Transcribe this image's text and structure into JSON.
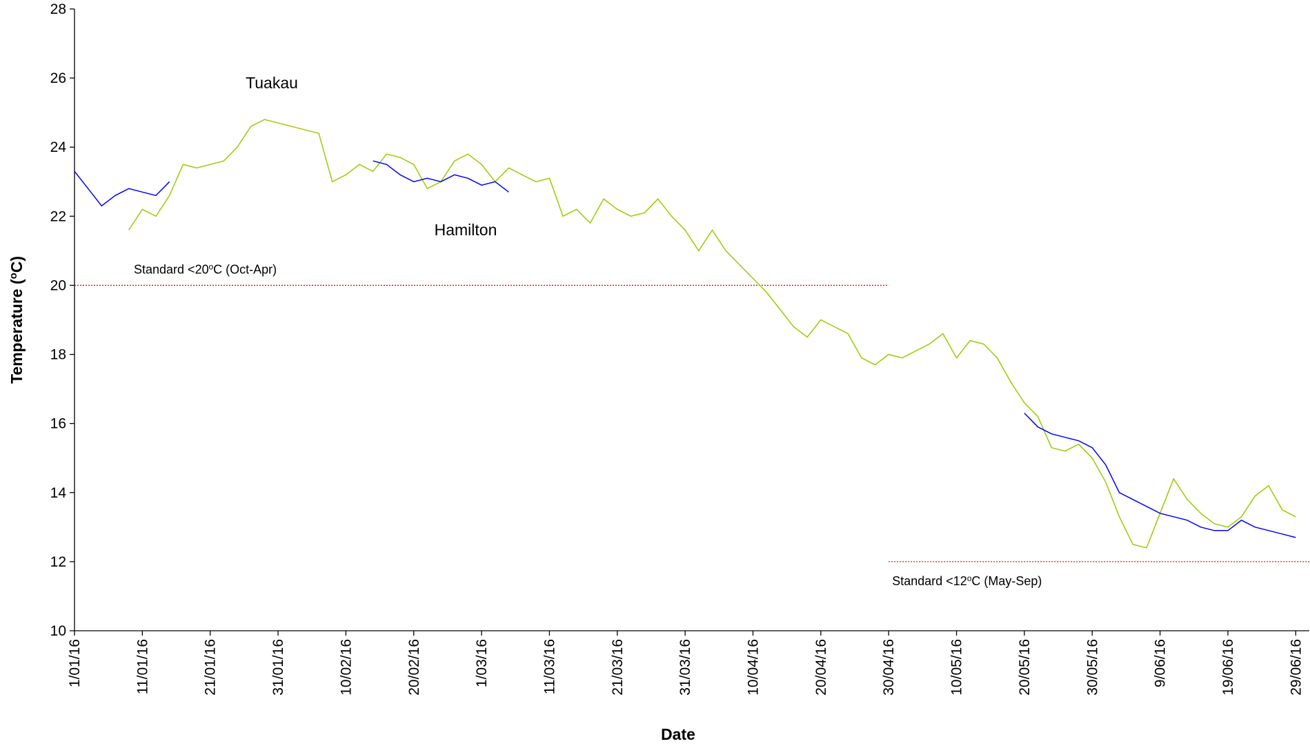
{
  "chart_data": {
    "type": "line",
    "x_label": "Date",
    "y_label": {
      "text": "Temperature (",
      "sup": "o",
      "tail": "C)"
    },
    "x": [
      "1/01/16",
      "3/01/16",
      "5/01/16",
      "7/01/16",
      "9/01/16",
      "11/01/16",
      "13/01/16",
      "15/01/16",
      "17/01/16",
      "19/01/16",
      "21/01/16",
      "23/01/16",
      "25/01/16",
      "27/01/16",
      "29/01/16",
      "31/01/16",
      "2/02/16",
      "4/02/16",
      "6/02/16",
      "8/02/16",
      "10/02/16",
      "12/02/16",
      "14/02/16",
      "16/02/16",
      "18/02/16",
      "20/02/16",
      "22/02/16",
      "24/02/16",
      "26/02/16",
      "28/02/16",
      "1/03/16",
      "3/03/16",
      "5/03/16",
      "7/03/16",
      "9/03/16",
      "11/03/16",
      "13/03/16",
      "15/03/16",
      "17/03/16",
      "19/03/16",
      "21/03/16",
      "23/03/16",
      "25/03/16",
      "27/03/16",
      "29/03/16",
      "31/03/16",
      "2/04/16",
      "4/04/16",
      "6/04/16",
      "8/04/16",
      "10/04/16",
      "12/04/16",
      "14/04/16",
      "16/04/16",
      "18/04/16",
      "20/04/16",
      "22/04/16",
      "24/04/16",
      "26/04/16",
      "28/04/16",
      "30/04/16",
      "2/05/16",
      "4/05/16",
      "6/05/16",
      "8/05/16",
      "10/05/16",
      "12/05/16",
      "14/05/16",
      "16/05/16",
      "18/05/16",
      "20/05/16",
      "22/05/16",
      "24/05/16",
      "26/05/16",
      "28/05/16",
      "30/05/16",
      "1/06/16",
      "3/06/16",
      "5/06/16",
      "7/06/16",
      "9/06/16",
      "11/06/16",
      "13/06/16",
      "15/06/16",
      "17/06/16",
      "19/06/16",
      "21/06/16",
      "23/06/16",
      "25/06/16",
      "27/06/16",
      "29/06/16"
    ],
    "series": [
      {
        "name": "Tuakau",
        "color": "#99cc00",
        "values": [
          null,
          null,
          null,
          null,
          21.6,
          22.2,
          22.0,
          22.6,
          23.5,
          23.4,
          23.5,
          23.6,
          24.0,
          24.6,
          24.8,
          24.7,
          24.6,
          24.5,
          24.4,
          23.0,
          23.2,
          23.5,
          23.3,
          23.8,
          23.7,
          23.5,
          22.8,
          23.0,
          23.6,
          23.8,
          23.5,
          23.0,
          23.4,
          23.2,
          23.0,
          23.1,
          22.0,
          22.2,
          21.8,
          22.5,
          22.2,
          22.0,
          22.1,
          22.5,
          22.0,
          21.6,
          21.0,
          21.6,
          21.0,
          20.6,
          20.2,
          19.8,
          19.3,
          18.8,
          18.5,
          19.0,
          18.8,
          18.6,
          17.9,
          17.7,
          18.0,
          17.9,
          18.1,
          18.3,
          18.6,
          17.9,
          18.4,
          18.3,
          17.9,
          17.2,
          16.6,
          16.2,
          15.3,
          15.2,
          15.4,
          15.0,
          14.3,
          13.3,
          12.5,
          12.4,
          13.4,
          14.4,
          13.8,
          13.4,
          13.1,
          13.0,
          13.3,
          13.9,
          14.2,
          13.5,
          13.3
        ]
      },
      {
        "name": "Hamilton",
        "color": "#0000ff",
        "values": [
          23.3,
          22.8,
          22.3,
          22.6,
          22.8,
          22.7,
          22.6,
          23.0,
          null,
          null,
          null,
          null,
          null,
          null,
          null,
          null,
          null,
          null,
          null,
          null,
          null,
          null,
          23.6,
          23.5,
          23.2,
          23.0,
          23.1,
          23.0,
          23.2,
          23.1,
          22.9,
          23.0,
          22.7,
          null,
          null,
          null,
          null,
          null,
          null,
          null,
          null,
          null,
          null,
          null,
          null,
          null,
          null,
          null,
          null,
          null,
          null,
          null,
          null,
          null,
          null,
          null,
          null,
          null,
          null,
          null,
          null,
          null,
          null,
          null,
          null,
          null,
          null,
          null,
          null,
          null,
          16.3,
          15.9,
          15.7,
          15.6,
          15.5,
          15.3,
          14.8,
          14.0,
          13.8,
          13.6,
          13.4,
          13.3,
          13.2,
          13.0,
          12.9,
          12.9,
          13.2,
          13.0,
          12.9,
          12.8,
          12.7
        ]
      }
    ],
    "series_labels": [
      {
        "series": "Tuakau",
        "x": "11/01/16",
        "y": 26.1
      }
    ],
    "xlim": [
      "1/01/16",
      "1/07/16"
    ],
    "xticks": [
      "1/01/16",
      "11/01/16",
      "21/01/16",
      "31/01/16",
      "10/02/16",
      "20/02/16",
      "1/03/16",
      "11/03/16",
      "21/03/16",
      "31/03/16",
      "10/04/16",
      "20/04/16",
      "30/04/16",
      "10/05/16",
      "20/05/16",
      "30/05/16",
      "9/06/16",
      "19/06/16",
      "29/06/16"
    ],
    "ylim": [
      10,
      28
    ],
    "yticks": [
      10,
      12,
      14,
      16,
      18,
      20,
      22,
      24,
      26,
      28
    ],
    "reference_lines": [
      {
        "value": 20,
        "color": "#ff0000",
        "label": {
          "text": "Standard <20",
          "sup": "o",
          "tail": "C (Oct-Apr)"
        }
      },
      {
        "value": 12,
        "color": "#ff0000",
        "label": {
          "text": "Standard <12",
          "sup": "o",
          "tail": "C (May-Sep)"
        }
      }
    ]
  }
}
